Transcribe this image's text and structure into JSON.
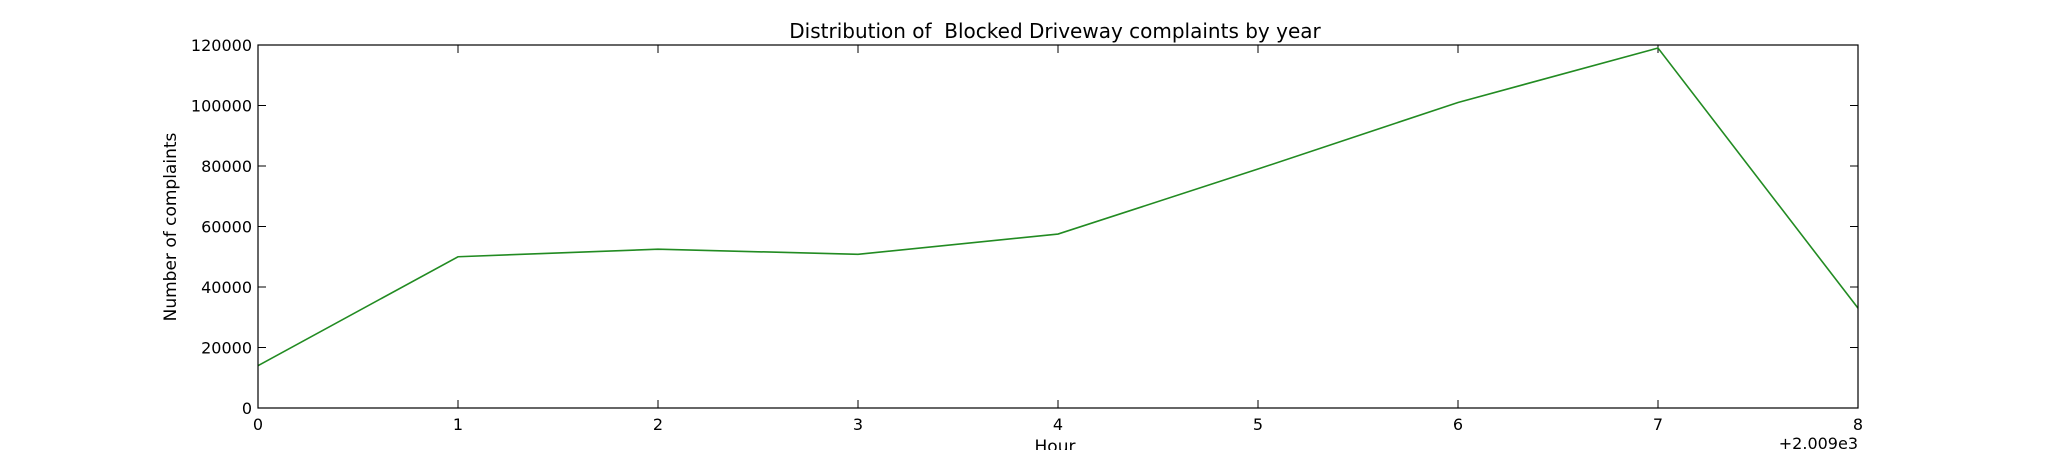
{
  "chart_data": {
    "type": "line",
    "title": "Distribution of  Blocked Driveway complaints by year",
    "xlabel": "Hour",
    "ylabel": "Number of complaints",
    "x_offset_label": "+2.009e3",
    "x": [
      0,
      1,
      2,
      3,
      4,
      5,
      6,
      7,
      8
    ],
    "series": [
      {
        "color": "#228b22",
        "values": [
          14000,
          50000,
          52500,
          50800,
          57500,
          79000,
          101000,
          119000,
          33000
        ]
      }
    ],
    "xlim": [
      0,
      8
    ],
    "ylim": [
      0,
      120000
    ],
    "xticks": [
      "0",
      "1",
      "2",
      "3",
      "4",
      "5",
      "6",
      "7",
      "8"
    ],
    "yticks": [
      "0",
      "20000",
      "40000",
      "60000",
      "80000",
      "100000",
      "120000"
    ],
    "grid": false
  }
}
